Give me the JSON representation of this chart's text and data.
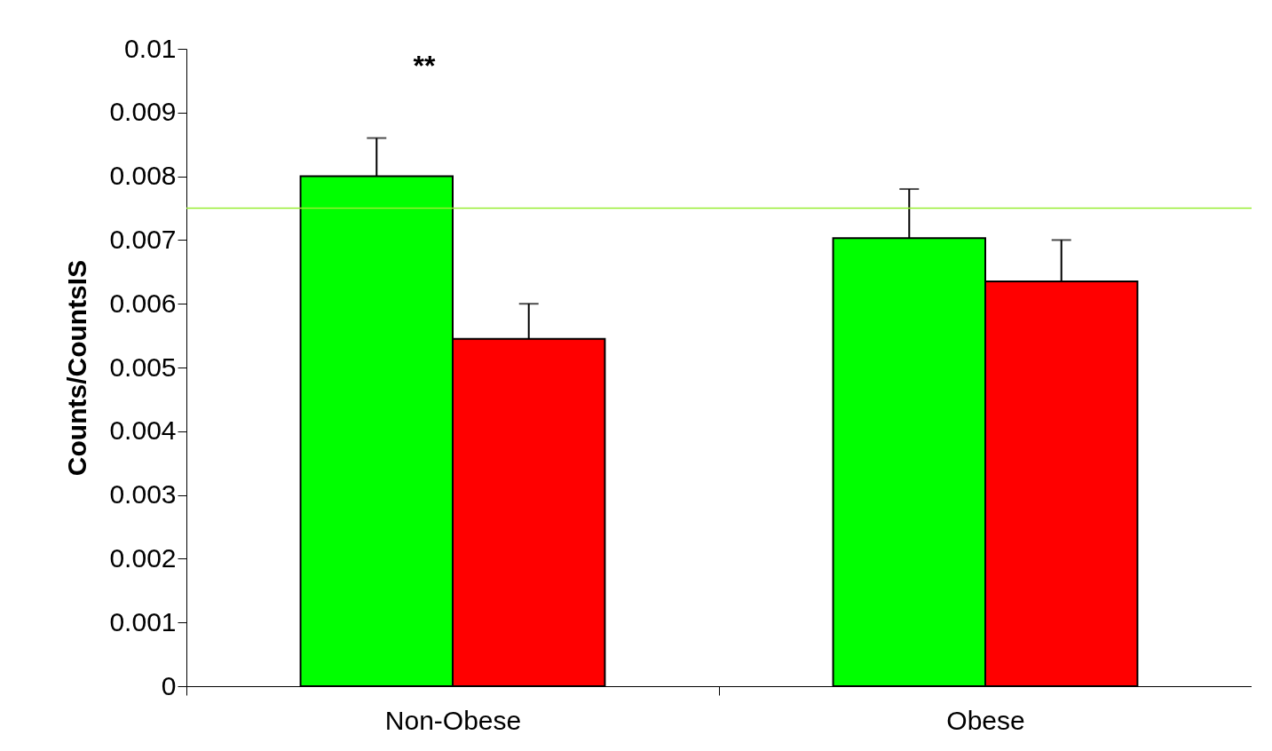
{
  "chart_data": {
    "type": "bar",
    "ylabel": "Counts/CountsIS",
    "categories": [
      "Non-Obese",
      "Obese"
    ],
    "series": [
      {
        "color": "#00ff00",
        "values": [
          0.008,
          0.00703
        ],
        "errors": [
          [
            0.008,
            0.0086
          ],
          [
            0.00703,
            0.0078
          ]
        ]
      },
      {
        "color": "#ff0000",
        "values": [
          0.00545,
          0.00635
        ],
        "errors": [
          [
            0.00545,
            0.006
          ],
          [
            0.00635,
            0.007
          ]
        ]
      }
    ],
    "ylim": [
      0,
      0.01
    ],
    "yticks": [
      0,
      0.001,
      0.002,
      0.003,
      0.004,
      0.005,
      0.006,
      0.007,
      0.008,
      0.009,
      0.01
    ],
    "ref_lines": [
      {
        "axis": "y",
        "value": 0.0075,
        "color": "#99ee33"
      }
    ],
    "annotations": [
      "**"
    ],
    "grid": false
  }
}
